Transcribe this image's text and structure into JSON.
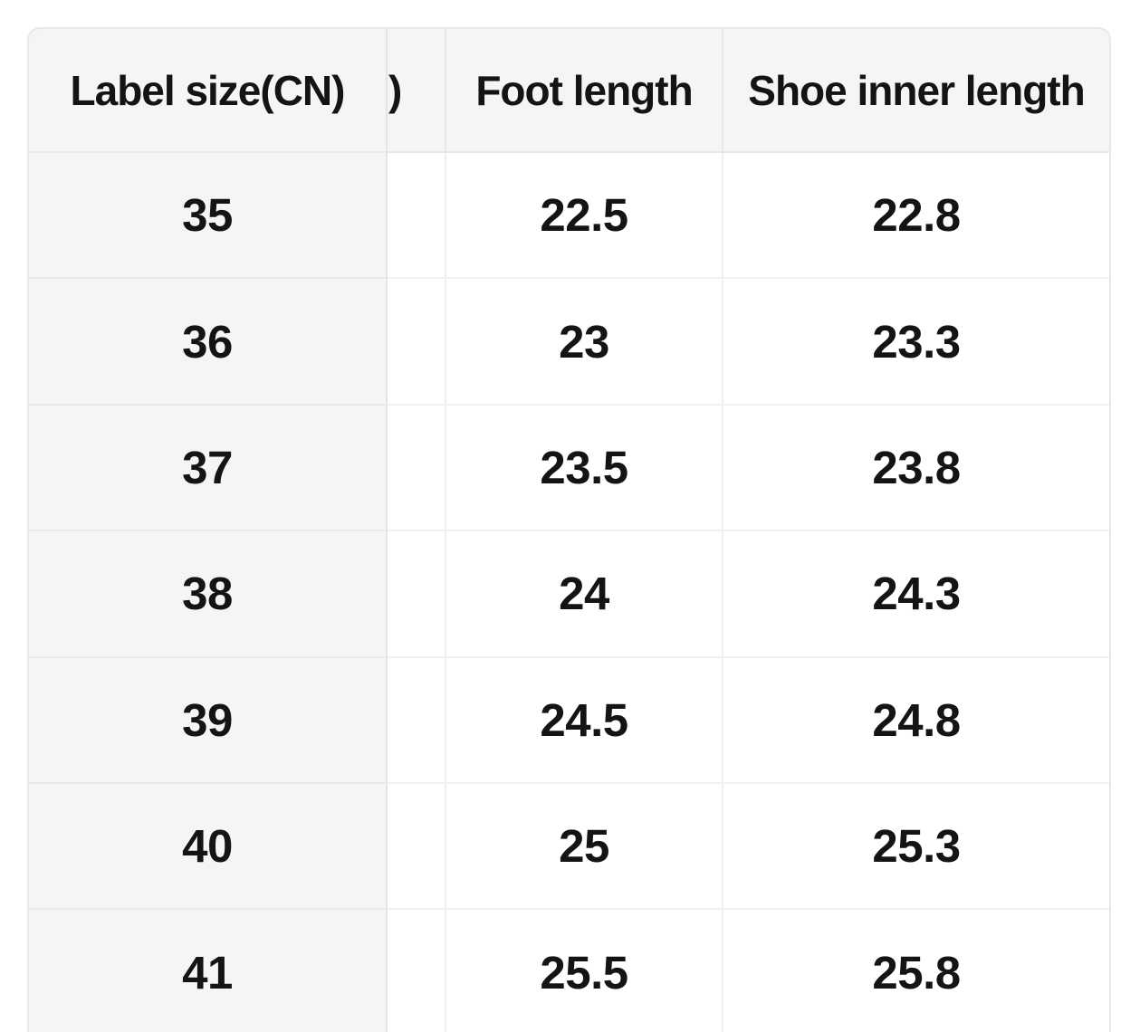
{
  "size_chart": {
    "headers": {
      "label_size_cn": "Label size(CN)",
      "partial_hidden_column": ")",
      "foot_length": "Foot length",
      "shoe_inner_length": "Shoe inner length"
    },
    "rows": [
      {
        "label_size_cn": "35",
        "foot_length": "22.5",
        "shoe_inner_length": "22.8"
      },
      {
        "label_size_cn": "36",
        "foot_length": "23",
        "shoe_inner_length": "23.3"
      },
      {
        "label_size_cn": "37",
        "foot_length": "23.5",
        "shoe_inner_length": "23.8"
      },
      {
        "label_size_cn": "38",
        "foot_length": "24",
        "shoe_inner_length": "24.3"
      },
      {
        "label_size_cn": "39",
        "foot_length": "24.5",
        "shoe_inner_length": "24.8"
      },
      {
        "label_size_cn": "40",
        "foot_length": "25",
        "shoe_inner_length": "25.3"
      },
      {
        "label_size_cn": "41",
        "foot_length": "25.5",
        "shoe_inner_length": "25.8"
      }
    ],
    "colors": {
      "page_bg": "#ffffff",
      "header_bg": "#f5f5f6",
      "cell_bg": "#ffffff",
      "border": "#e8e8ea",
      "text": "#141414"
    }
  }
}
